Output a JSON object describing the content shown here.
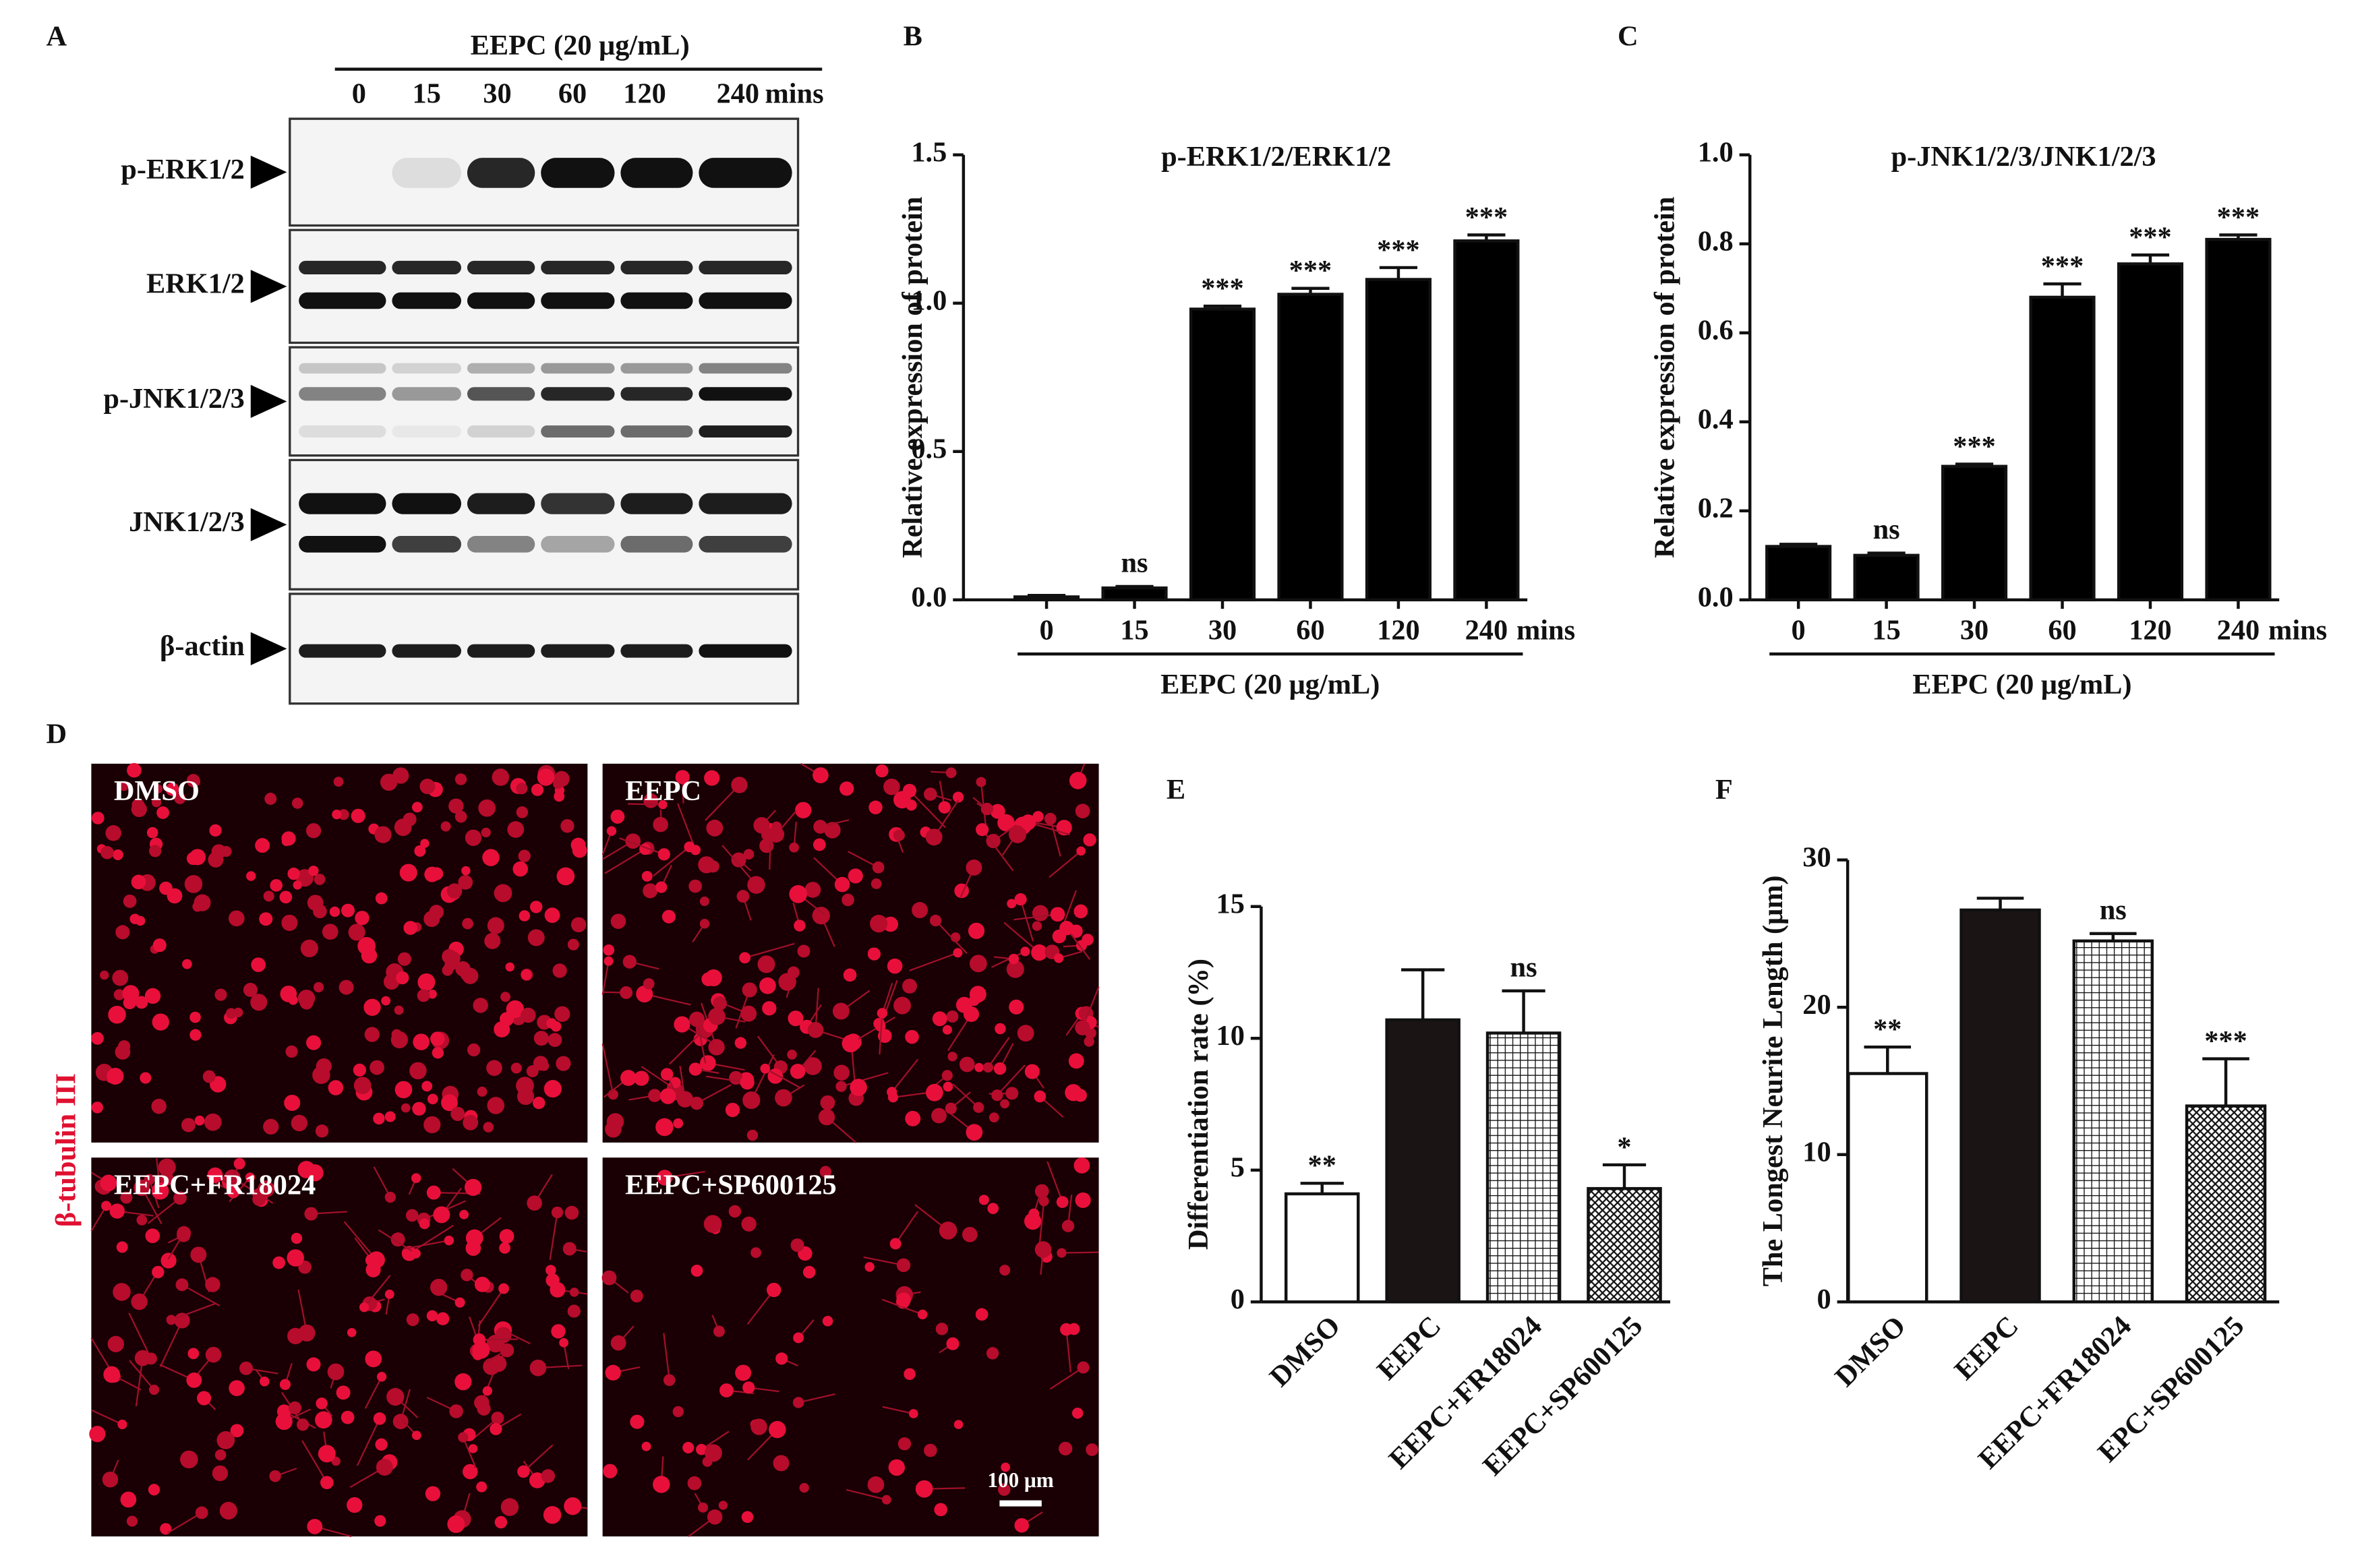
{
  "blot": {
    "panel_label": "A",
    "treatment": "EEPC (20 μg/mL)",
    "times": [
      "0",
      "15",
      "30",
      "60",
      "120",
      "240"
    ],
    "unit": "mins",
    "proteins": [
      "p-ERK1/2",
      "ERK1/2",
      "p-JNK1/2/3",
      "JNK1/2/3",
      "β-actin"
    ]
  },
  "micrographs": {
    "panel_label": "D",
    "stain": "β-tubulin III",
    "conditions": [
      "DMSO",
      "EEPC",
      "EEPC+FR18024",
      "EEPC+SP600125"
    ],
    "scale_bar": "100 μm"
  },
  "chart_data": [
    {
      "type": "bar",
      "panel_label": "B",
      "title": "p-ERK1/2/ERK1/2",
      "y_label": "Relative expression of protein",
      "x_label": "EEPC (20 μg/mL)",
      "x_unit": "mins",
      "categories": [
        "0",
        "15",
        "30",
        "60",
        "120",
        "240"
      ],
      "values": [
        0.01,
        0.04,
        0.98,
        1.03,
        1.08,
        1.21
      ],
      "errors": [
        0.005,
        0.005,
        0.01,
        0.02,
        0.04,
        0.02
      ],
      "significance": [
        null,
        "ns",
        "***",
        "***",
        "***",
        "***"
      ],
      "color": "#000000",
      "ylim": [
        0,
        1.5
      ],
      "yticks": [
        {
          "value": 0,
          "label": "0.0"
        },
        0.5,
        {
          "value": 1,
          "label": "1.0"
        },
        1.5
      ]
    },
    {
      "type": "bar",
      "panel_label": "C",
      "title": "p-JNK1/2/3/JNK1/2/3",
      "y_label": "Relative expression of protein",
      "x_label": "EEPC (20 μg/mL)",
      "x_unit": "mins",
      "categories": [
        "0",
        "15",
        "30",
        "60",
        "120",
        "240"
      ],
      "values": [
        0.12,
        0.1,
        0.3,
        0.68,
        0.755,
        0.81
      ],
      "errors": [
        0.005,
        0.005,
        0.005,
        0.03,
        0.02,
        0.01
      ],
      "significance": [
        null,
        "ns",
        "***",
        "***",
        "***",
        "***"
      ],
      "color": "#000000",
      "ylim": [
        0,
        1
      ],
      "yticks": [
        {
          "value": 0,
          "label": "0.0"
        },
        0.2,
        0.4,
        0.6,
        0.8,
        {
          "value": 1,
          "label": "1.0"
        }
      ]
    },
    {
      "type": "bar",
      "panel_label": "E",
      "y_label": "Differentiation rate (%)",
      "categories": [
        "DMSO",
        "EEPC",
        "EEPC+FR18024",
        "EEPC+SP600125"
      ],
      "values": [
        4.1,
        10.7,
        10.2,
        4.3
      ],
      "errors": [
        0.4,
        1.9,
        1.6,
        0.9
      ],
      "significance": [
        "**",
        null,
        "ns",
        "*"
      ],
      "bar_styles": [
        "open",
        "solid",
        "grid",
        "hatch"
      ],
      "ylim": [
        0,
        15
      ],
      "yticks": [
        0,
        5,
        10,
        15
      ]
    },
    {
      "type": "bar",
      "panel_label": "F",
      "y_label": "The Longest Neurite Length (μm)",
      "categories": [
        "DMSO",
        "EEPC",
        "EEPC+FR18024",
        "EPC+SP600125"
      ],
      "values": [
        15.5,
        26.6,
        24.5,
        13.3
      ],
      "errors": [
        1.8,
        0.8,
        0.5,
        3.2
      ],
      "significance": [
        "**",
        null,
        "ns",
        "***"
      ],
      "bar_styles": [
        "open",
        "solid",
        "grid",
        "hatch"
      ],
      "ylim": [
        0,
        30
      ],
      "yticks": [
        0,
        10,
        20,
        30
      ]
    }
  ]
}
